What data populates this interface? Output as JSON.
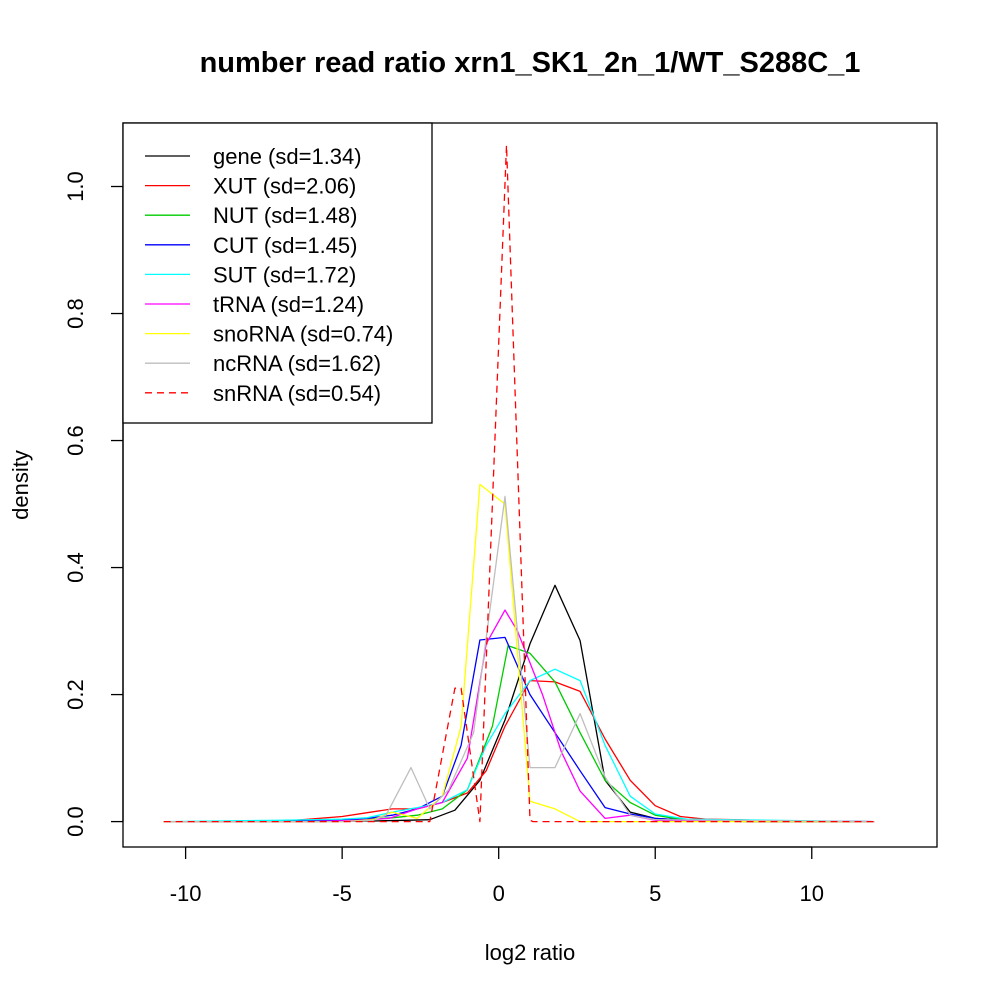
{
  "chart_data": {
    "type": "line",
    "title": "number read ratio xrn1_SK1_2n_1/WT_S288C_1",
    "xlabel": "log2 ratio",
    "ylabel": "density",
    "xlim": [
      -12,
      14
    ],
    "ylim": [
      -0.04,
      1.1
    ],
    "xticks": [
      -10,
      -5,
      0,
      5,
      10
    ],
    "xtick_labels": [
      "-10",
      "-5",
      "0",
      "5",
      "10"
    ],
    "yticks": [
      0.0,
      0.2,
      0.4,
      0.6,
      0.8,
      1.0
    ],
    "ytick_labels": [
      "0.0",
      "0.2",
      "0.4",
      "0.6",
      "0.8",
      "1.0"
    ],
    "grid": false,
    "legend_position": "top-left",
    "series": [
      {
        "name": "gene (sd=1.34)",
        "color": "#000000",
        "dash": "solid",
        "x": [
          -10.7,
          -8.0,
          -6.0,
          -4.0,
          -3.0,
          -2.2,
          -1.4,
          -0.6,
          0.2,
          1.0,
          1.8,
          2.6,
          3.4,
          4.2,
          5.0,
          6.0,
          8.0,
          12.0
        ],
        "y": [
          0,
          0,
          0,
          0.001,
          0.002,
          0.003,
          0.018,
          0.065,
          0.16,
          0.28,
          0.372,
          0.285,
          0.065,
          0.015,
          0.005,
          0.002,
          0,
          0
        ]
      },
      {
        "name": "XUT (sd=2.06)",
        "color": "#ff0000",
        "dash": "solid",
        "x": [
          -10.7,
          -8.0,
          -6.5,
          -5.0,
          -4.2,
          -3.4,
          -2.6,
          -1.8,
          -1.0,
          -0.4,
          0.2,
          1.0,
          1.8,
          2.6,
          3.4,
          4.2,
          5.0,
          5.8,
          6.6,
          7.5,
          9.0,
          12.0
        ],
        "y": [
          0,
          0,
          0.002,
          0.008,
          0.014,
          0.02,
          0.02,
          0.03,
          0.045,
          0.08,
          0.15,
          0.222,
          0.22,
          0.205,
          0.13,
          0.065,
          0.025,
          0.008,
          0.004,
          0.003,
          0.001,
          0
        ]
      },
      {
        "name": "NUT (sd=1.48)",
        "color": "#00cc00",
        "dash": "solid",
        "x": [
          -10.7,
          -7.0,
          -5.0,
          -4.2,
          -3.4,
          -2.6,
          -1.8,
          -1.0,
          -0.2,
          0.3,
          1.0,
          1.8,
          2.6,
          3.4,
          4.2,
          5.0,
          6.0,
          12.0
        ],
        "y": [
          0,
          0,
          0.002,
          0.004,
          0.006,
          0.01,
          0.02,
          0.05,
          0.15,
          0.277,
          0.265,
          0.22,
          0.14,
          0.065,
          0.03,
          0.01,
          0.002,
          0
        ]
      },
      {
        "name": "CUT (sd=1.45)",
        "color": "#0000ff",
        "dash": "solid",
        "x": [
          -10.7,
          -7.0,
          -5.0,
          -4.2,
          -3.4,
          -2.6,
          -1.8,
          -1.2,
          -0.6,
          0.2,
          1.0,
          1.8,
          2.6,
          3.4,
          4.2,
          5.0,
          6.0,
          12.0
        ],
        "y": [
          0,
          0,
          0.002,
          0.005,
          0.01,
          0.02,
          0.04,
          0.12,
          0.286,
          0.29,
          0.2,
          0.14,
          0.08,
          0.022,
          0.012,
          0.005,
          0.002,
          0
        ]
      },
      {
        "name": "SUT (sd=1.72)",
        "color": "#00ffff",
        "dash": "solid",
        "x": [
          -10.7,
          -7.0,
          -5.0,
          -4.2,
          -3.4,
          -2.6,
          -1.8,
          -1.0,
          -0.4,
          0.2,
          1.0,
          1.8,
          2.6,
          3.4,
          4.2,
          5.0,
          6.0,
          12.0
        ],
        "y": [
          0,
          0.002,
          0.004,
          0.006,
          0.015,
          0.022,
          0.03,
          0.05,
          0.12,
          0.17,
          0.222,
          0.24,
          0.222,
          0.12,
          0.04,
          0.012,
          0.004,
          0
        ]
      },
      {
        "name": "tRNA (sd=1.24)",
        "color": "#ff00ff",
        "dash": "solid",
        "x": [
          -10.7,
          -6.0,
          -4.5,
          -3.5,
          -2.6,
          -1.8,
          -1.0,
          -0.4,
          0.2,
          0.6,
          1.4,
          2.0,
          2.6,
          3.4,
          4.2,
          5.0,
          12.0
        ],
        "y": [
          0,
          0,
          0.002,
          0.005,
          0.02,
          0.03,
          0.1,
          0.28,
          0.333,
          0.3,
          0.2,
          0.11,
          0.048,
          0.005,
          0.01,
          0.002,
          0
        ]
      },
      {
        "name": "snoRNA (sd=0.74)",
        "color": "#ffff00",
        "dash": "solid",
        "x": [
          -10.7,
          -5.0,
          -4.0,
          -3.4,
          -2.6,
          -1.8,
          -1.2,
          -0.6,
          0.2,
          1.0,
          1.8,
          2.6,
          5.0,
          12.0
        ],
        "y": [
          0,
          0,
          0.003,
          0.015,
          0.005,
          0.04,
          0.15,
          0.531,
          0.5,
          0.032,
          0.02,
          0,
          0,
          0
        ]
      },
      {
        "name": "ncRNA (sd=1.62)",
        "color": "#bebebe",
        "dash": "solid",
        "x": [
          -10.7,
          -5.0,
          -4.0,
          -3.6,
          -2.8,
          -2.2,
          -1.6,
          -0.8,
          0.2,
          1.0,
          1.8,
          2.6,
          3.4,
          4.2,
          5.0,
          12.0
        ],
        "y": [
          0,
          0,
          0.002,
          0.01,
          0.085,
          0.02,
          0.05,
          0.14,
          0.512,
          0.085,
          0.085,
          0.17,
          0.07,
          0.01,
          0.003,
          0
        ]
      },
      {
        "name": "snRNA (sd=0.54)",
        "color": "#ff0000",
        "dash": "dashed",
        "x": [
          -10.7,
          -5.0,
          -2.2,
          -1.4,
          -1.2,
          -0.6,
          0.25,
          1.0,
          1.1,
          12.0
        ],
        "y": [
          0,
          0,
          0,
          0.21,
          0.21,
          0,
          1.065,
          0.002,
          0,
          0
        ]
      }
    ]
  }
}
